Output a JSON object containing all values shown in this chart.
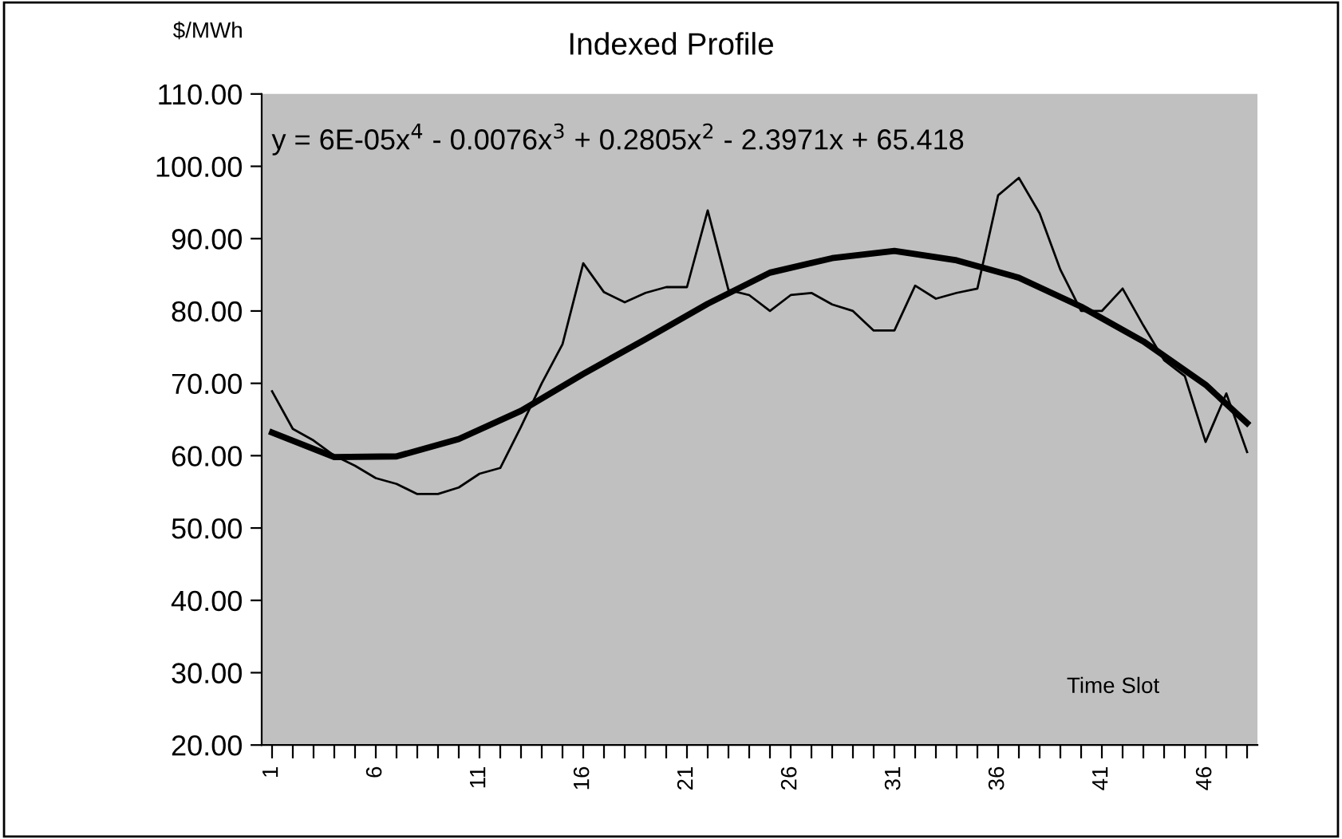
{
  "chart_data": {
    "type": "line",
    "title": "Indexed Profile",
    "ylabel": "$/MWh",
    "xlabel": "Time Slot",
    "annotations": [
      "y = 6E-05x$^{4}$ - 0.0076x$^{3}$ + 0.2805x$^{2}$ - 2.3971x + 65.418"
    ],
    "x": [
      1,
      2,
      3,
      4,
      5,
      6,
      7,
      8,
      9,
      10,
      11,
      12,
      13,
      14,
      15,
      16,
      17,
      18,
      19,
      20,
      21,
      22,
      23,
      24,
      25,
      26,
      27,
      28,
      29,
      30,
      31,
      32,
      33,
      34,
      35,
      36,
      37,
      38,
      39,
      40,
      41,
      42,
      43,
      44,
      45,
      46,
      47,
      48
    ],
    "series": [
      {
        "color": "#000000",
        "values": [
          68.9,
          63.7,
          62.1,
          60.0,
          58.6,
          56.9,
          56.1,
          54.7,
          54.7,
          55.6,
          57.5,
          58.3,
          64.0,
          70.0,
          75.4,
          86.6,
          82.6,
          81.2,
          82.5,
          83.3,
          83.3,
          93.9,
          82.9,
          82.2,
          80.0,
          82.2,
          82.5,
          80.9,
          80.0,
          77.3,
          77.3,
          83.5,
          81.7,
          82.5,
          83.1,
          96.0,
          98.4,
          93.5,
          85.7,
          80.0,
          80.0,
          83.1,
          78.0,
          73.2,
          71.0,
          61.9,
          68.6,
          60.5
        ]
      },
      {
        "color": "#000000",
        "x": [
          1,
          4,
          7,
          10,
          13,
          16,
          19,
          22,
          25,
          28,
          31,
          34,
          37,
          40,
          43,
          46,
          48
        ],
        "values": [
          63.2,
          59.8,
          59.9,
          62.3,
          66.2,
          71.3,
          76.1,
          81.0,
          85.3,
          87.3,
          88.3,
          87.0,
          84.6,
          80.6,
          75.8,
          69.8,
          64.5
        ]
      }
    ],
    "xlim": [
      0.5,
      48.5
    ],
    "xticks": [
      1,
      {
        "value": 2,
        "label": null
      },
      {
        "value": 3,
        "label": null
      },
      {
        "value": 4,
        "label": null
      },
      {
        "value": 5,
        "label": null
      },
      6,
      {
        "value": 7,
        "label": null
      },
      {
        "value": 8,
        "label": null
      },
      {
        "value": 9,
        "label": null
      },
      {
        "value": 10,
        "label": null
      },
      11,
      {
        "value": 12,
        "label": null
      },
      {
        "value": 13,
        "label": null
      },
      {
        "value": 14,
        "label": null
      },
      {
        "value": 15,
        "label": null
      },
      16,
      {
        "value": 17,
        "label": null
      },
      {
        "value": 18,
        "label": null
      },
      {
        "value": 19,
        "label": null
      },
      {
        "value": 20,
        "label": null
      },
      21,
      {
        "value": 22,
        "label": null
      },
      {
        "value": 23,
        "label": null
      },
      {
        "value": 24,
        "label": null
      },
      {
        "value": 25,
        "label": null
      },
      26,
      {
        "value": 27,
        "label": null
      },
      {
        "value": 28,
        "label": null
      },
      {
        "value": 29,
        "label": null
      },
      {
        "value": 30,
        "label": null
      },
      31,
      {
        "value": 32,
        "label": null
      },
      {
        "value": 33,
        "label": null
      },
      {
        "value": 34,
        "label": null
      },
      {
        "value": 35,
        "label": null
      },
      36,
      {
        "value": 37,
        "label": null
      },
      {
        "value": 38,
        "label": null
      },
      {
        "value": 39,
        "label": null
      },
      {
        "value": 40,
        "label": null
      },
      41,
      {
        "value": 42,
        "label": null
      },
      {
        "value": 43,
        "label": null
      },
      {
        "value": 44,
        "label": null
      },
      {
        "value": 45,
        "label": null
      },
      46,
      {
        "value": 47,
        "label": null
      },
      {
        "value": 48,
        "label": null
      }
    ],
    "ylim": [
      20,
      110
    ],
    "yticks": [
      {
        "value": 20,
        "label": "20.00"
      },
      {
        "value": 30,
        "label": "30.00"
      },
      {
        "value": 40,
        "label": "40.00"
      },
      {
        "value": 50,
        "label": "50.00"
      },
      {
        "value": 60,
        "label": "60.00"
      },
      {
        "value": 70,
        "label": "70.00"
      },
      {
        "value": 80,
        "label": "80.00"
      },
      {
        "value": 90,
        "label": "90.00"
      },
      {
        "value": 100,
        "label": "100.00"
      },
      {
        "value": 110,
        "label": "110.00"
      }
    ],
    "grid": false,
    "legend": false,
    "marker": "none",
    "line_style": "solid"
  }
}
